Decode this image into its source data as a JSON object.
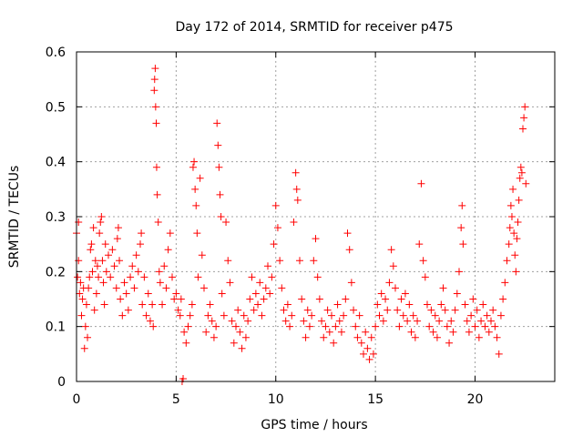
{
  "chart_data": {
    "type": "scatter",
    "title": "Day 172 of 2014, SRMTID for receiver p475",
    "xlabel": "GPS time / hours",
    "ylabel": "SRMTID / TECUs",
    "xlim": [
      0,
      24
    ],
    "ylim": [
      0,
      0.6
    ],
    "xticks": [
      0,
      5,
      10,
      15,
      20
    ],
    "xtick_labels": [
      "0",
      "5",
      "10",
      "15",
      "20"
    ],
    "yticks": [
      0,
      0.1,
      0.2,
      0.3,
      0.4,
      0.5,
      0.6
    ],
    "ytick_labels": [
      "0",
      "0.1",
      "0.2",
      "0.3",
      "0.4",
      "0.5",
      "0.6"
    ],
    "grid": true,
    "marker": "+",
    "color": "#ff0000",
    "series": [
      {
        "name": "p475",
        "points": [
          [
            0.0,
            0.27
          ],
          [
            0.05,
            0.19
          ],
          [
            0.1,
            0.29
          ],
          [
            0.1,
            0.22
          ],
          [
            0.15,
            0.16
          ],
          [
            0.2,
            0.18
          ],
          [
            0.25,
            0.12
          ],
          [
            0.3,
            0.15
          ],
          [
            0.35,
            0.17
          ],
          [
            0.4,
            0.06
          ],
          [
            0.45,
            0.1
          ],
          [
            0.5,
            0.14
          ],
          [
            0.55,
            0.08
          ],
          [
            0.6,
            0.17
          ],
          [
            0.65,
            0.19
          ],
          [
            0.7,
            0.24
          ],
          [
            0.75,
            0.25
          ],
          [
            0.8,
            0.2
          ],
          [
            0.85,
            0.28
          ],
          [
            0.9,
            0.13
          ],
          [
            0.95,
            0.22
          ],
          [
            1.0,
            0.16
          ],
          [
            1.05,
            0.21
          ],
          [
            1.1,
            0.19
          ],
          [
            1.15,
            0.27
          ],
          [
            1.2,
            0.29
          ],
          [
            1.25,
            0.3
          ],
          [
            1.3,
            0.22
          ],
          [
            1.35,
            0.18
          ],
          [
            1.4,
            0.14
          ],
          [
            1.45,
            0.25
          ],
          [
            1.5,
            0.2
          ],
          [
            1.6,
            0.23
          ],
          [
            1.7,
            0.19
          ],
          [
            1.8,
            0.24
          ],
          [
            1.9,
            0.21
          ],
          [
            2.0,
            0.17
          ],
          [
            2.05,
            0.26
          ],
          [
            2.1,
            0.28
          ],
          [
            2.15,
            0.22
          ],
          [
            2.2,
            0.15
          ],
          [
            2.3,
            0.12
          ],
          [
            2.4,
            0.18
          ],
          [
            2.5,
            0.16
          ],
          [
            2.6,
            0.13
          ],
          [
            2.7,
            0.19
          ],
          [
            2.8,
            0.21
          ],
          [
            2.9,
            0.17
          ],
          [
            3.0,
            0.23
          ],
          [
            3.1,
            0.2
          ],
          [
            3.2,
            0.25
          ],
          [
            3.25,
            0.27
          ],
          [
            3.3,
            0.14
          ],
          [
            3.4,
            0.19
          ],
          [
            3.5,
            0.12
          ],
          [
            3.6,
            0.16
          ],
          [
            3.7,
            0.11
          ],
          [
            3.8,
            0.14
          ],
          [
            3.85,
            0.1
          ],
          [
            3.9,
            0.53
          ],
          [
            3.92,
            0.55
          ],
          [
            3.95,
            0.57
          ],
          [
            3.97,
            0.5
          ],
          [
            4.0,
            0.47
          ],
          [
            4.02,
            0.39
          ],
          [
            4.05,
            0.34
          ],
          [
            4.1,
            0.29
          ],
          [
            4.15,
            0.2
          ],
          [
            4.2,
            0.18
          ],
          [
            4.3,
            0.14
          ],
          [
            4.4,
            0.21
          ],
          [
            4.5,
            0.17
          ],
          [
            4.6,
            0.24
          ],
          [
            4.7,
            0.27
          ],
          [
            4.8,
            0.19
          ],
          [
            4.9,
            0.15
          ],
          [
            5.0,
            0.16
          ],
          [
            5.1,
            0.13
          ],
          [
            5.2,
            0.12
          ],
          [
            5.25,
            0.15
          ],
          [
            5.3,
            0.0
          ],
          [
            5.35,
            0.005
          ],
          [
            5.4,
            0.09
          ],
          [
            5.5,
            0.07
          ],
          [
            5.6,
            0.1
          ],
          [
            5.7,
            0.12
          ],
          [
            5.8,
            0.14
          ],
          [
            5.85,
            0.39
          ],
          [
            5.9,
            0.4
          ],
          [
            5.95,
            0.35
          ],
          [
            6.0,
            0.32
          ],
          [
            6.05,
            0.27
          ],
          [
            6.1,
            0.19
          ],
          [
            6.2,
            0.37
          ],
          [
            6.3,
            0.23
          ],
          [
            6.4,
            0.17
          ],
          [
            6.5,
            0.09
          ],
          [
            6.6,
            0.12
          ],
          [
            6.7,
            0.14
          ],
          [
            6.8,
            0.11
          ],
          [
            6.9,
            0.08
          ],
          [
            7.0,
            0.1
          ],
          [
            7.05,
            0.47
          ],
          [
            7.1,
            0.43
          ],
          [
            7.15,
            0.39
          ],
          [
            7.2,
            0.34
          ],
          [
            7.25,
            0.3
          ],
          [
            7.3,
            0.16
          ],
          [
            7.4,
            0.12
          ],
          [
            7.5,
            0.29
          ],
          [
            7.6,
            0.22
          ],
          [
            7.7,
            0.18
          ],
          [
            7.8,
            0.11
          ],
          [
            7.9,
            0.07
          ],
          [
            8.0,
            0.1
          ],
          [
            8.1,
            0.13
          ],
          [
            8.2,
            0.09
          ],
          [
            8.3,
            0.06
          ],
          [
            8.4,
            0.12
          ],
          [
            8.5,
            0.08
          ],
          [
            8.6,
            0.11
          ],
          [
            8.7,
            0.15
          ],
          [
            8.8,
            0.19
          ],
          [
            8.9,
            0.13
          ],
          [
            9.0,
            0.16
          ],
          [
            9.1,
            0.14
          ],
          [
            9.2,
            0.18
          ],
          [
            9.3,
            0.12
          ],
          [
            9.4,
            0.15
          ],
          [
            9.5,
            0.17
          ],
          [
            9.6,
            0.21
          ],
          [
            9.7,
            0.16
          ],
          [
            9.8,
            0.19
          ],
          [
            9.9,
            0.25
          ],
          [
            10.0,
            0.32
          ],
          [
            10.1,
            0.28
          ],
          [
            10.2,
            0.22
          ],
          [
            10.3,
            0.17
          ],
          [
            10.4,
            0.13
          ],
          [
            10.5,
            0.11
          ],
          [
            10.6,
            0.14
          ],
          [
            10.7,
            0.1
          ],
          [
            10.8,
            0.12
          ],
          [
            10.9,
            0.29
          ],
          [
            11.0,
            0.38
          ],
          [
            11.05,
            0.35
          ],
          [
            11.1,
            0.33
          ],
          [
            11.2,
            0.22
          ],
          [
            11.3,
            0.15
          ],
          [
            11.4,
            0.11
          ],
          [
            11.5,
            0.08
          ],
          [
            11.6,
            0.13
          ],
          [
            11.7,
            0.1
          ],
          [
            11.8,
            0.12
          ],
          [
            11.9,
            0.22
          ],
          [
            12.0,
            0.26
          ],
          [
            12.1,
            0.19
          ],
          [
            12.2,
            0.15
          ],
          [
            12.3,
            0.11
          ],
          [
            12.4,
            0.08
          ],
          [
            12.5,
            0.1
          ],
          [
            12.6,
            0.13
          ],
          [
            12.7,
            0.09
          ],
          [
            12.8,
            0.12
          ],
          [
            12.9,
            0.07
          ],
          [
            13.0,
            0.1
          ],
          [
            13.1,
            0.14
          ],
          [
            13.2,
            0.11
          ],
          [
            13.3,
            0.09
          ],
          [
            13.4,
            0.12
          ],
          [
            13.5,
            0.15
          ],
          [
            13.6,
            0.27
          ],
          [
            13.7,
            0.24
          ],
          [
            13.8,
            0.18
          ],
          [
            13.9,
            0.13
          ],
          [
            14.0,
            0.1
          ],
          [
            14.1,
            0.08
          ],
          [
            14.2,
            0.12
          ],
          [
            14.3,
            0.07
          ],
          [
            14.4,
            0.05
          ],
          [
            14.5,
            0.09
          ],
          [
            14.6,
            0.06
          ],
          [
            14.7,
            0.04
          ],
          [
            14.8,
            0.08
          ],
          [
            14.9,
            0.05
          ],
          [
            15.0,
            0.1
          ],
          [
            15.1,
            0.14
          ],
          [
            15.2,
            0.12
          ],
          [
            15.3,
            0.16
          ],
          [
            15.4,
            0.11
          ],
          [
            15.5,
            0.15
          ],
          [
            15.6,
            0.13
          ],
          [
            15.7,
            0.18
          ],
          [
            15.8,
            0.24
          ],
          [
            15.9,
            0.21
          ],
          [
            16.0,
            0.17
          ],
          [
            16.1,
            0.13
          ],
          [
            16.2,
            0.1
          ],
          [
            16.3,
            0.15
          ],
          [
            16.4,
            0.12
          ],
          [
            16.5,
            0.16
          ],
          [
            16.6,
            0.11
          ],
          [
            16.7,
            0.14
          ],
          [
            16.8,
            0.09
          ],
          [
            16.9,
            0.12
          ],
          [
            17.0,
            0.08
          ],
          [
            17.1,
            0.11
          ],
          [
            17.2,
            0.25
          ],
          [
            17.3,
            0.36
          ],
          [
            17.4,
            0.22
          ],
          [
            17.5,
            0.19
          ],
          [
            17.6,
            0.14
          ],
          [
            17.7,
            0.1
          ],
          [
            17.8,
            0.13
          ],
          [
            17.9,
            0.09
          ],
          [
            18.0,
            0.12
          ],
          [
            18.1,
            0.08
          ],
          [
            18.2,
            0.11
          ],
          [
            18.3,
            0.14
          ],
          [
            18.4,
            0.17
          ],
          [
            18.5,
            0.13
          ],
          [
            18.6,
            0.1
          ],
          [
            18.7,
            0.07
          ],
          [
            18.8,
            0.11
          ],
          [
            18.9,
            0.09
          ],
          [
            19.0,
            0.13
          ],
          [
            19.1,
            0.16
          ],
          [
            19.2,
            0.2
          ],
          [
            19.3,
            0.28
          ],
          [
            19.35,
            0.32
          ],
          [
            19.4,
            0.25
          ],
          [
            19.5,
            0.14
          ],
          [
            19.6,
            0.11
          ],
          [
            19.7,
            0.09
          ],
          [
            19.8,
            0.12
          ],
          [
            19.9,
            0.15
          ],
          [
            20.0,
            0.1
          ],
          [
            20.1,
            0.13
          ],
          [
            20.2,
            0.08
          ],
          [
            20.3,
            0.11
          ],
          [
            20.4,
            0.14
          ],
          [
            20.5,
            0.1
          ],
          [
            20.6,
            0.12
          ],
          [
            20.7,
            0.09
          ],
          [
            20.8,
            0.11
          ],
          [
            20.9,
            0.13
          ],
          [
            21.0,
            0.1
          ],
          [
            21.1,
            0.08
          ],
          [
            21.2,
            0.05
          ],
          [
            21.3,
            0.12
          ],
          [
            21.4,
            0.15
          ],
          [
            21.5,
            0.18
          ],
          [
            21.6,
            0.22
          ],
          [
            21.7,
            0.25
          ],
          [
            21.75,
            0.28
          ],
          [
            21.8,
            0.32
          ],
          [
            21.85,
            0.3
          ],
          [
            21.9,
            0.35
          ],
          [
            21.95,
            0.27
          ],
          [
            22.0,
            0.23
          ],
          [
            22.05,
            0.2
          ],
          [
            22.1,
            0.26
          ],
          [
            22.15,
            0.29
          ],
          [
            22.2,
            0.33
          ],
          [
            22.25,
            0.37
          ],
          [
            22.3,
            0.39
          ],
          [
            22.35,
            0.38
          ],
          [
            22.4,
            0.46
          ],
          [
            22.45,
            0.48
          ],
          [
            22.5,
            0.5
          ],
          [
            22.55,
            0.36
          ]
        ]
      }
    ]
  }
}
